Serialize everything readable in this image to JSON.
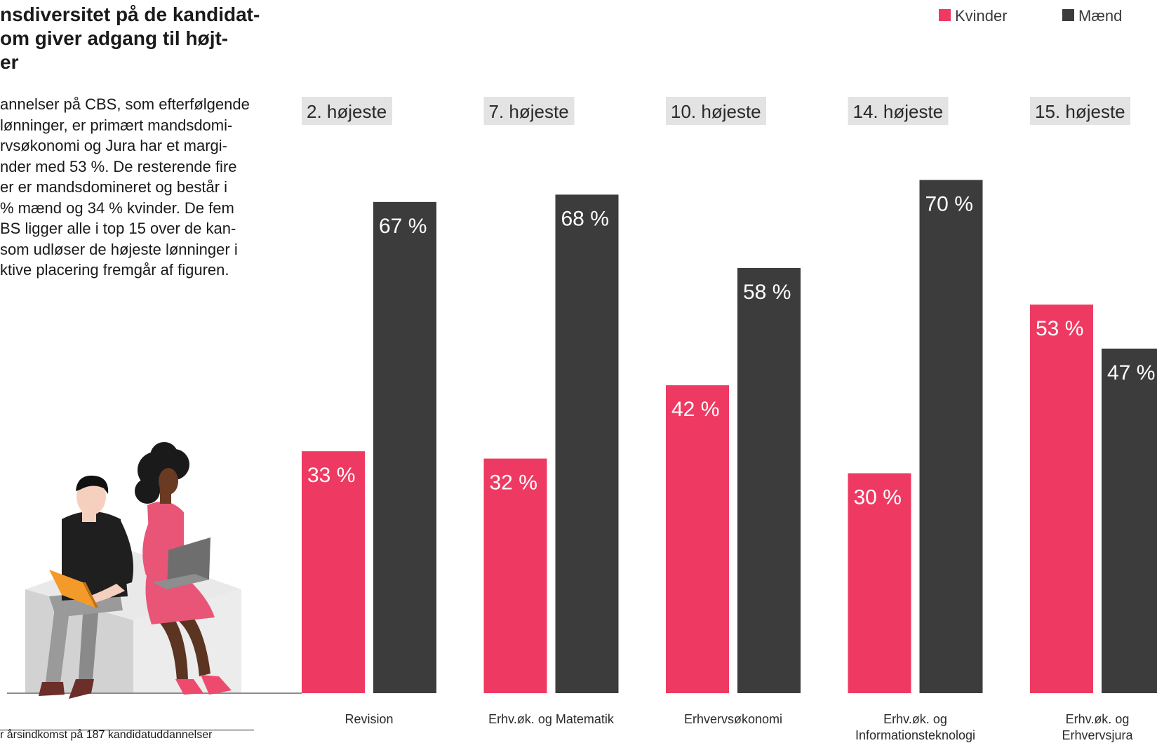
{
  "title": "nsdiversitet på de kandidat-\nom giver adgang til højt-\ner",
  "body_text": "annelser på CBS, som efterfølgende\n lønninger, er primært mandsdomi-\nrvsøkonomi og Jura har et margi-\nnder med 53 %. De resterende fire\ner er mandsdomineret og består i\n% mænd og 34 % kvinder. De fem\nBS ligger alle i top 15 over de kan-\nsom udløser de højeste lønninger i\nktive placering fremgår af figuren.",
  "footnote": "r årsindkomst på 187 kandidatuddannelser",
  "colors": {
    "kvinder": "#ee3a62",
    "maend": "#3c3c3c",
    "rank_bg": "#e3e3e3",
    "baseline": "#8c8c8c"
  },
  "illustration": {
    "icon": "students-with-laptops-illustration"
  },
  "chart_data": {
    "type": "bar",
    "unit": "%",
    "categories": [
      "Revision",
      "Erhv.øk. og Matematik",
      "Erhvervsøkonomi",
      "Erhv.øk. og\nInformationsteknologi",
      "Erhv.øk. og\nErhvervsjura"
    ],
    "ranks": [
      "2. højeste",
      "7. højeste",
      "10. højeste",
      "14. højeste",
      "15. højeste"
    ],
    "series": [
      {
        "name": "Kvinder",
        "color": "#ee3a62",
        "values": [
          33,
          32,
          42,
          30,
          53
        ]
      },
      {
        "name": "Mænd",
        "color": "#3c3c3c",
        "values": [
          67,
          68,
          58,
          70,
          47
        ]
      }
    ],
    "ylim": [
      0,
      100
    ],
    "legend_position": "top-right",
    "grid": false
  }
}
